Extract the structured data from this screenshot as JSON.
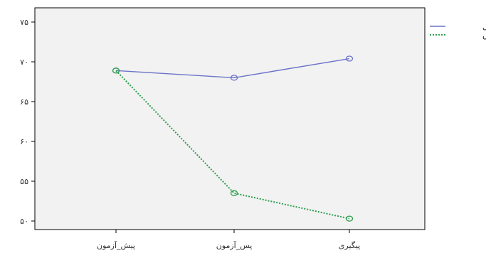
{
  "chart_data": {
    "type": "line",
    "title": "",
    "xlabel": "",
    "ylabel": "",
    "categories": [
      "پیش_آزمون",
      "پس_آزمون",
      "پیگیری"
    ],
    "ylim": [
      50,
      75
    ],
    "yticks": [
      50,
      55,
      60,
      65,
      70,
      75
    ],
    "ytick_labels": [
      "۵۰",
      "۵۵",
      "۶۰",
      "۶۵",
      "۷۰",
      "۷۵"
    ],
    "grid": false,
    "legend_position": "top-right",
    "series": [
      {
        "name": "کنترل",
        "values": [
          68.9,
          68.0,
          70.4
        ],
        "color": "#6a74c8",
        "dash": "solid"
      },
      {
        "name": "آزمایش",
        "values": [
          68.9,
          53.5,
          50.3
        ],
        "color": "#2e9e4e",
        "dash": "dashed"
      }
    ]
  }
}
